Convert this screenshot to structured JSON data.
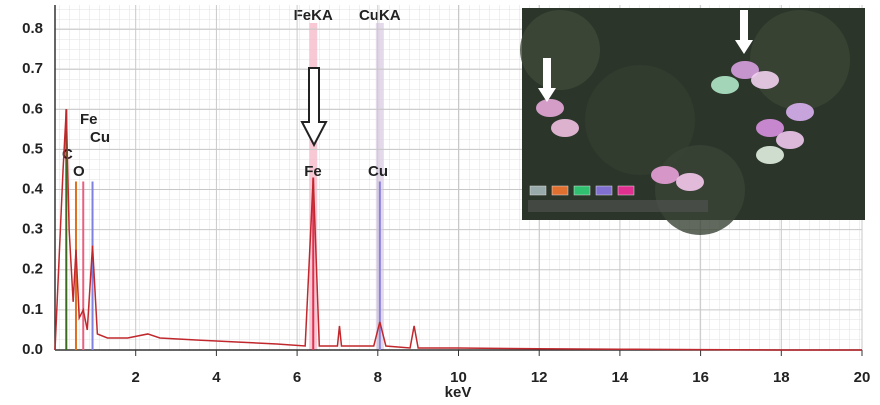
{
  "chart_data": {
    "type": "line",
    "x_label": "keV",
    "xlim": [
      0,
      20
    ],
    "xticks": [
      2,
      4,
      6,
      8,
      10,
      12,
      14,
      16,
      18,
      20
    ],
    "ylim": [
      0,
      0.86
    ],
    "yticks": [
      {
        "value": 0,
        "label": "0.0"
      },
      0.1,
      0.2,
      0.3,
      0.4,
      0.5,
      0.6,
      0.7,
      0.8
    ],
    "grid": true,
    "series": [
      {
        "color": "#c0282d",
        "x": [
          0,
          0.2,
          0.28,
          0.35,
          0.45,
          0.52,
          0.6,
          0.7,
          0.8,
          0.93,
          1.05,
          1.3,
          1.8,
          2.3,
          2.6,
          3.5,
          4.5,
          5.5,
          6.2,
          6.4,
          6.55,
          7.0,
          7.05,
          7.1,
          7.9,
          8.05,
          8.2,
          8.8,
          8.9,
          9.0,
          10,
          12,
          14,
          16,
          18,
          20
        ],
        "values": [
          0.0,
          0.45,
          0.6,
          0.3,
          0.12,
          0.25,
          0.08,
          0.1,
          0.05,
          0.26,
          0.04,
          0.03,
          0.03,
          0.04,
          0.03,
          0.025,
          0.02,
          0.015,
          0.01,
          0.43,
          0.01,
          0.01,
          0.06,
          0.01,
          0.01,
          0.07,
          0.01,
          0.005,
          0.06,
          0.005,
          0.005,
          0.003,
          0.002,
          0.001,
          0.0,
          0.0
        ]
      }
    ],
    "element_lines": [
      {
        "label": "C",
        "x": 0.28,
        "value": 0.6,
        "color": "#3a6b1e"
      },
      {
        "label": "O",
        "x": 0.52,
        "value": 0.42,
        "color": "#e07020"
      },
      {
        "label": "Fe",
        "x": 0.7,
        "value": 0.42,
        "color": "#e86080"
      },
      {
        "label": "Cu",
        "x": 0.93,
        "value": 0.42,
        "color": "#8080e0"
      },
      {
        "label": "Fe",
        "x": 6.4,
        "value": 0.43,
        "color": "#e03050"
      },
      {
        "label": "Cu",
        "x": 8.05,
        "value": 0.42,
        "color": "#8a80e0"
      }
    ],
    "bands": [
      {
        "label": "FeKA",
        "x": 6.4,
        "color": "#f6bccb"
      },
      {
        "label": "CuKA",
        "x": 8.05,
        "color": "#ddd0e6"
      }
    ]
  }
}
